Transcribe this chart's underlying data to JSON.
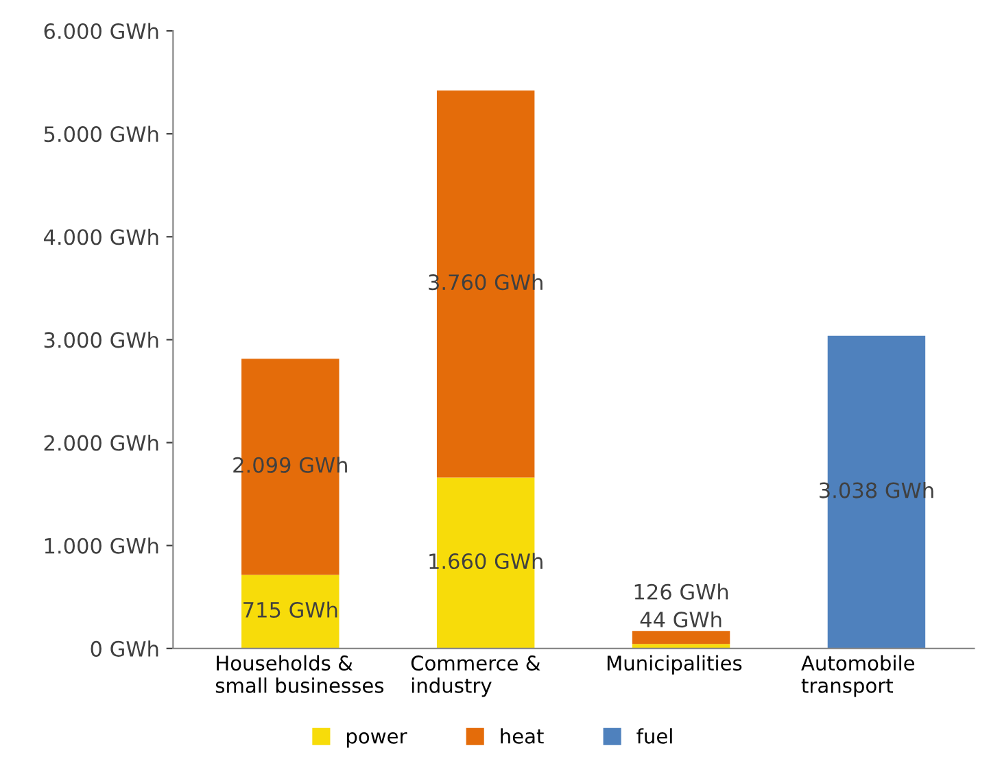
{
  "chart_data": {
    "type": "bar",
    "stacked": true,
    "categories": [
      "Households &\nsmall businesses",
      "Commerce &\nindustry",
      "Municipalities",
      "Automobile\ntransport"
    ],
    "series": [
      {
        "name": "power",
        "color": "#f7dc0a",
        "values": [
          715,
          1660,
          44,
          null
        ],
        "value_labels": [
          "715 GWh",
          "1.660 GWh",
          "44 GWh",
          null
        ]
      },
      {
        "name": "heat",
        "color": "#e46c0a",
        "values": [
          2099,
          3760,
          126,
          null
        ],
        "value_labels": [
          "2.099 GWh",
          "3.760 GWh",
          "126 GWh",
          null
        ]
      },
      {
        "name": "fuel",
        "color": "#4f81bd",
        "values": [
          null,
          null,
          null,
          3038
        ],
        "value_labels": [
          null,
          null,
          null,
          "3.038 GWh"
        ]
      }
    ],
    "ylim": [
      0,
      6000
    ],
    "yticks": [
      {
        "value": 0,
        "label": "0 GWh"
      },
      {
        "value": 1000,
        "label": "1.000 GWh"
      },
      {
        "value": 2000,
        "label": "2.000 GWh"
      },
      {
        "value": 3000,
        "label": "3.000 GWh"
      },
      {
        "value": 4000,
        "label": "4.000 GWh"
      },
      {
        "value": 5000,
        "label": "5.000 GWh"
      },
      {
        "value": 6000,
        "label": "6.000 GWh"
      }
    ],
    "grid": false,
    "legend": "bottom"
  }
}
